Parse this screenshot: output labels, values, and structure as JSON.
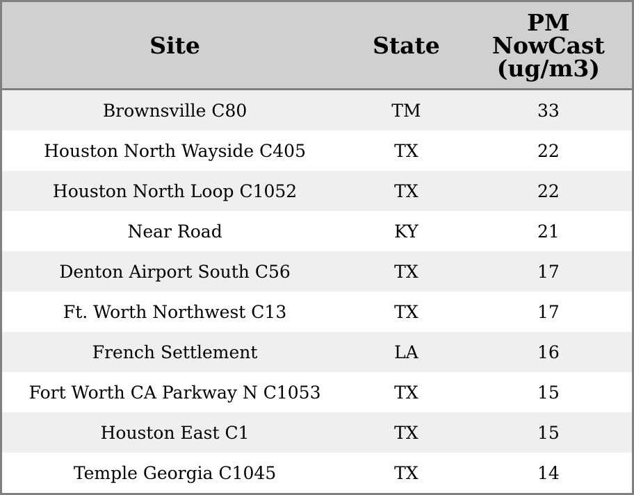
{
  "table": {
    "header": [
      "Site",
      "State",
      "PM NowCast (ug/m3)"
    ],
    "rows": [
      [
        "Brownsville C80",
        "TM",
        33
      ],
      [
        "Houston North Wayside C405",
        "TX",
        22
      ],
      [
        "Houston North Loop C1052",
        "TX",
        22
      ],
      [
        "Near Road",
        "KY",
        21
      ],
      [
        "Denton Airport South C56",
        "TX",
        17
      ],
      [
        "Ft. Worth Northwest C13",
        "TX",
        17
      ],
      [
        "French Settlement",
        "LA",
        16
      ],
      [
        "Fort Worth CA Parkway N C1053",
        "TX",
        15
      ],
      [
        "Houston East C1",
        "TX",
        15
      ],
      [
        "Temple Georgia C1045",
        "TX",
        14
      ]
    ]
  }
}
